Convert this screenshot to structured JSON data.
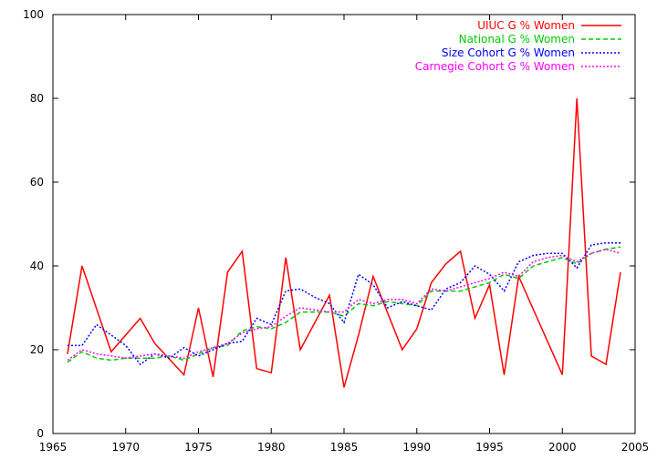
{
  "chart_data": {
    "type": "line",
    "title": "",
    "xlabel": "",
    "ylabel": "",
    "xlim": [
      1965,
      2005
    ],
    "ylim": [
      0,
      100
    ],
    "xticks": [
      1965,
      1970,
      1975,
      1980,
      1985,
      1990,
      1995,
      2000,
      2005
    ],
    "yticks": [
      0,
      20,
      40,
      60,
      80,
      100
    ],
    "grid": false,
    "legend_position": "top-right",
    "series": [
      {
        "name": "UIUC G % Women",
        "color": "#ff0000",
        "dash": "solid",
        "points": [
          [
            1966,
            19
          ],
          [
            1967,
            40
          ],
          [
            1969,
            19.5
          ],
          [
            1971,
            27.5
          ],
          [
            1972,
            21.5
          ],
          [
            1974,
            14
          ],
          [
            1975,
            30
          ],
          [
            1976,
            13.5
          ],
          [
            1977,
            38.5
          ],
          [
            1978,
            43.5
          ],
          [
            1979,
            15.5
          ],
          [
            1980,
            14.5
          ],
          [
            1981,
            42
          ],
          [
            1982,
            20
          ],
          [
            1984,
            33
          ],
          [
            1985,
            11
          ],
          [
            1986,
            23.5
          ],
          [
            1987,
            37.5
          ],
          [
            1989,
            20
          ],
          [
            1990,
            25
          ],
          [
            1991,
            36
          ],
          [
            1992,
            40.5
          ],
          [
            1993,
            43.5
          ],
          [
            1994,
            27.5
          ],
          [
            1995,
            35.5
          ],
          [
            1996,
            14
          ],
          [
            1997,
            37.5
          ],
          [
            2000,
            14
          ],
          [
            2001,
            80
          ],
          [
            2002,
            18.5
          ],
          [
            2003,
            16.5
          ],
          [
            2004,
            38.5
          ]
        ]
      },
      {
        "name": "National G % Women",
        "color": "#00cc00",
        "dash": "dashed",
        "points": [
          [
            1966,
            17
          ],
          [
            1967,
            19.5
          ],
          [
            1968,
            18
          ],
          [
            1969,
            17.5
          ],
          [
            1970,
            18
          ],
          [
            1971,
            18
          ],
          [
            1972,
            18
          ],
          [
            1973,
            18.5
          ],
          [
            1974,
            17.5
          ],
          [
            1975,
            19
          ],
          [
            1976,
            20.5
          ],
          [
            1977,
            21
          ],
          [
            1978,
            24.5
          ],
          [
            1979,
            25.5
          ],
          [
            1980,
            25
          ],
          [
            1981,
            26.5
          ],
          [
            1982,
            29
          ],
          [
            1983,
            29
          ],
          [
            1984,
            29
          ],
          [
            1985,
            28
          ],
          [
            1986,
            31
          ],
          [
            1987,
            30.5
          ],
          [
            1988,
            31.5
          ],
          [
            1989,
            31
          ],
          [
            1990,
            30.5
          ],
          [
            1991,
            34
          ],
          [
            1992,
            34
          ],
          [
            1993,
            34
          ],
          [
            1994,
            35
          ],
          [
            1995,
            36
          ],
          [
            1996,
            38
          ],
          [
            1997,
            37
          ],
          [
            1998,
            40
          ],
          [
            1999,
            41
          ],
          [
            2000,
            42
          ],
          [
            2001,
            40.5
          ],
          [
            2002,
            43
          ],
          [
            2003,
            44
          ],
          [
            2004,
            44.5
          ]
        ]
      },
      {
        "name": "Size Cohort G % Women",
        "color": "#0000ff",
        "dash": "dotted",
        "points": [
          [
            1966,
            21
          ],
          [
            1967,
            21
          ],
          [
            1968,
            26
          ],
          [
            1969,
            23.5
          ],
          [
            1970,
            21
          ],
          [
            1971,
            16.5
          ],
          [
            1972,
            19
          ],
          [
            1973,
            18
          ],
          [
            1974,
            20.5
          ],
          [
            1975,
            18.5
          ],
          [
            1976,
            20
          ],
          [
            1977,
            21.5
          ],
          [
            1978,
            22
          ],
          [
            1979,
            27.5
          ],
          [
            1980,
            26
          ],
          [
            1981,
            34
          ],
          [
            1982,
            34.5
          ],
          [
            1983,
            32.5
          ],
          [
            1984,
            31
          ],
          [
            1985,
            26.5
          ],
          [
            1986,
            38
          ],
          [
            1987,
            35.5
          ],
          [
            1988,
            30
          ],
          [
            1989,
            31.5
          ],
          [
            1990,
            30.5
          ],
          [
            1991,
            29.5
          ],
          [
            1992,
            34.5
          ],
          [
            1993,
            36
          ],
          [
            1994,
            40
          ],
          [
            1995,
            38
          ],
          [
            1996,
            34
          ],
          [
            1997,
            41
          ],
          [
            1998,
            42.5
          ],
          [
            1999,
            43
          ],
          [
            2000,
            43
          ],
          [
            2001,
            39.5
          ],
          [
            2002,
            45
          ],
          [
            2003,
            45.5
          ],
          [
            2004,
            45.5
          ]
        ]
      },
      {
        "name": "Carnegie Cohort G % Women",
        "color": "#ff00ff",
        "dash": "dotted",
        "points": [
          [
            1966,
            17.5
          ],
          [
            1967,
            20
          ],
          [
            1968,
            19
          ],
          [
            1969,
            18.5
          ],
          [
            1970,
            18
          ],
          [
            1971,
            18.5
          ],
          [
            1972,
            19
          ],
          [
            1973,
            18.5
          ],
          [
            1974,
            18
          ],
          [
            1975,
            19.5
          ],
          [
            1976,
            20.5
          ],
          [
            1977,
            21.5
          ],
          [
            1978,
            24
          ],
          [
            1979,
            25
          ],
          [
            1980,
            25.5
          ],
          [
            1981,
            28
          ],
          [
            1982,
            30
          ],
          [
            1983,
            29.5
          ],
          [
            1984,
            29
          ],
          [
            1985,
            29
          ],
          [
            1986,
            32
          ],
          [
            1987,
            31
          ],
          [
            1988,
            32
          ],
          [
            1989,
            32
          ],
          [
            1990,
            31
          ],
          [
            1991,
            34.5
          ],
          [
            1992,
            34
          ],
          [
            1993,
            35
          ],
          [
            1994,
            36
          ],
          [
            1995,
            37
          ],
          [
            1996,
            38.5
          ],
          [
            1997,
            37.5
          ],
          [
            1998,
            41
          ],
          [
            1999,
            42
          ],
          [
            2000,
            42.5
          ],
          [
            2001,
            41
          ],
          [
            2002,
            43
          ],
          [
            2003,
            44
          ],
          [
            2004,
            43
          ]
        ]
      }
    ]
  }
}
